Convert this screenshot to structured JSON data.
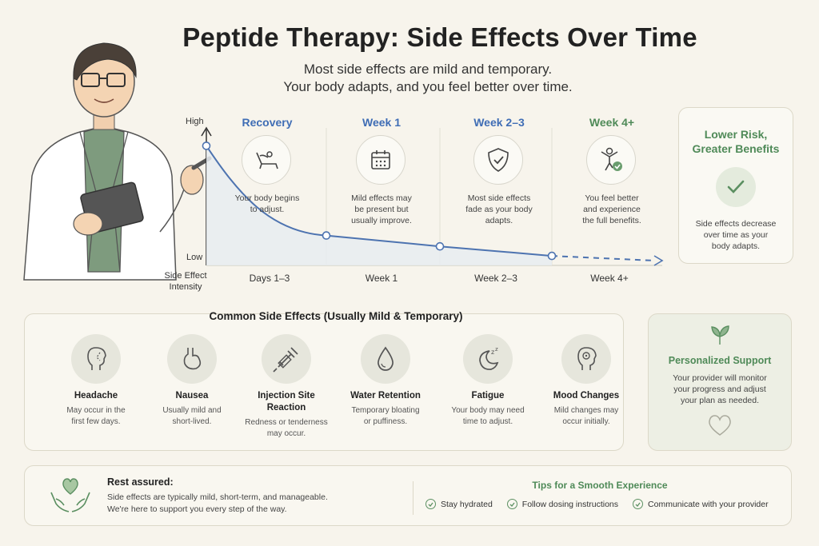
{
  "header": {
    "title": "Peptide Therapy: Side Effects Over Time",
    "subtitle_line1": "Most side effects are mild and temporary.",
    "subtitle_line2": "Your body adapts, and you feel better over time."
  },
  "timeline": {
    "y_high": "High",
    "y_low": "Low",
    "y_axis_title_1": "Side Effect",
    "y_axis_title_2": "Intensity",
    "stages": [
      {
        "title": "Recovery",
        "icon": "recliner-icon",
        "text1": "Your body begins",
        "text2": "to adjust.",
        "text3": "",
        "x_label": "Days 1–3",
        "color": "#3f6db5"
      },
      {
        "title": "Week 1",
        "icon": "calendar-icon",
        "text1": "Mild effects may",
        "text2": "be present but",
        "text3": "usually improve.",
        "x_label": "Week 1",
        "color": "#3f6db5"
      },
      {
        "title": "Week 2–3",
        "icon": "shield-check-icon",
        "text1": "Most side effects",
        "text2": "fade as your body",
        "text3": "adapts.",
        "x_label": "Week 2–3",
        "color": "#3f6db5"
      },
      {
        "title": "Week 4+",
        "icon": "person-celebrate-icon",
        "text1": "You feel better",
        "text2": "and experience",
        "text3": "the full benefits.",
        "x_label": "Week 4+",
        "color": "#4f8a58"
      }
    ]
  },
  "chart_data": {
    "type": "line",
    "categories": [
      "Days 1–3",
      "Week 1",
      "Week 2–3",
      "Week 4+"
    ],
    "values": [
      0.88,
      0.22,
      0.14,
      0.07
    ],
    "ylabel": "Side Effect Intensity",
    "ylim": [
      0,
      1
    ],
    "y_ticks": [
      "Low",
      "High"
    ],
    "final_segment_dashed": true
  },
  "benefit_card": {
    "title_line1": "Lower Risk,",
    "title_line2": "Greater Benefits",
    "icon": "check-circle-icon",
    "text1": "Side effects decrease",
    "text2": "over time as your",
    "text3": "body adapts."
  },
  "side_effects": {
    "heading": "Common Side Effects (Usually Mild & Temporary)",
    "items": [
      {
        "name1": "Headache",
        "name2": "",
        "desc1": "May occur in the",
        "desc2": "first few days.",
        "desc3": "",
        "icon": "head-profile-icon"
      },
      {
        "name1": "Nausea",
        "name2": "",
        "desc1": "Usually mild and",
        "desc2": "short-lived.",
        "desc3": "",
        "icon": "stomach-icon"
      },
      {
        "name1": "Injection Site",
        "name2": "Reaction",
        "desc1": "Redness or tenderness",
        "desc2": "may occur.",
        "desc3": "",
        "icon": "syringe-icon"
      },
      {
        "name1": "Water Retention",
        "name2": "",
        "desc1": "Temporary bloating",
        "desc2": "or puffiness.",
        "desc3": "",
        "icon": "water-drop-icon"
      },
      {
        "name1": "Fatigue",
        "name2": "",
        "desc1": "Your body may need",
        "desc2": "time to adjust.",
        "desc3": "",
        "icon": "moon-sleep-icon"
      },
      {
        "name1": "Mood Changes",
        "name2": "",
        "desc1": "Mild changes may",
        "desc2": "occur initially.",
        "desc3": "",
        "icon": "head-mind-icon"
      }
    ]
  },
  "support_card": {
    "title": "Personalized Support",
    "text1": "Your provider will monitor",
    "text2": "your progress and adjust",
    "text3": "your plan as needed.",
    "top_icon": "leaf-sprout-icon",
    "bottom_icon": "heart-outline-icon"
  },
  "footer": {
    "rest_title": "Rest assured:",
    "rest_text1": "Side effects are typically mild, short-term, and manageable.",
    "rest_text2": "We're here to support you every step of the way.",
    "icon": "hands-heart-icon",
    "tips_title": "Tips for a Smooth Experience",
    "tips": [
      "Stay hydrated",
      "Follow dosing instructions",
      "Communicate with your provider"
    ]
  },
  "colors": {
    "accent_green": "#4f8a58",
    "accent_blue": "#3f6db5",
    "background": "#f7f4ec"
  }
}
